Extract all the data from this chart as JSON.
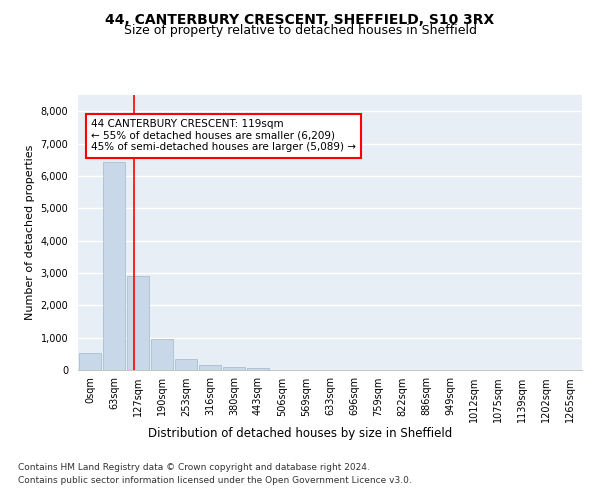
{
  "title_line1": "44, CANTERBURY CRESCENT, SHEFFIELD, S10 3RX",
  "title_line2": "Size of property relative to detached houses in Sheffield",
  "xlabel": "Distribution of detached houses by size in Sheffield",
  "ylabel": "Number of detached properties",
  "footer_line1": "Contains HM Land Registry data © Crown copyright and database right 2024.",
  "footer_line2": "Contains public sector information licensed under the Open Government Licence v3.0.",
  "bar_labels": [
    "0sqm",
    "63sqm",
    "127sqm",
    "190sqm",
    "253sqm",
    "316sqm",
    "380sqm",
    "443sqm",
    "506sqm",
    "569sqm",
    "633sqm",
    "696sqm",
    "759sqm",
    "822sqm",
    "886sqm",
    "949sqm",
    "1012sqm",
    "1075sqm",
    "1139sqm",
    "1202sqm",
    "1265sqm"
  ],
  "bar_values": [
    540,
    6430,
    2920,
    970,
    330,
    160,
    100,
    65,
    0,
    0,
    0,
    0,
    0,
    0,
    0,
    0,
    0,
    0,
    0,
    0,
    0
  ],
  "bar_color": "#c8d8e8",
  "bar_edgecolor": "#a0b8cc",
  "vline_x": 1.85,
  "vline_color": "red",
  "annotation_text": "44 CANTERBURY CRESCENT: 119sqm\n← 55% of detached houses are smaller (6,209)\n45% of semi-detached houses are larger (5,089) →",
  "annotation_box_color": "white",
  "annotation_box_edgecolor": "red",
  "ylim": [
    0,
    8500
  ],
  "yticks": [
    0,
    1000,
    2000,
    3000,
    4000,
    5000,
    6000,
    7000,
    8000
  ],
  "background_color": "#e8eef5",
  "grid_color": "white",
  "title_fontsize": 10,
  "subtitle_fontsize": 9,
  "axis_label_fontsize": 8.5,
  "tick_fontsize": 7,
  "annotation_fontsize": 7.5,
  "footer_fontsize": 6.5,
  "ylabel_fontsize": 8
}
